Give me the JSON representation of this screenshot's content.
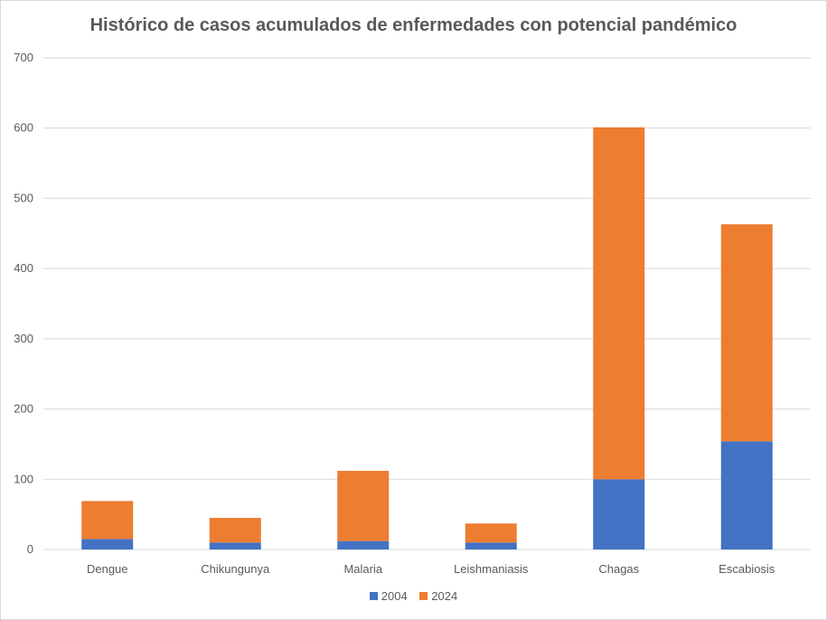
{
  "chart_data": {
    "type": "bar",
    "stacked": true,
    "title": "Histórico de casos acumulados de enfermedades con potencial pandémico",
    "xlabel": "",
    "ylabel": "",
    "ylim": [
      0,
      700
    ],
    "yticks": [
      "0",
      "100",
      "200",
      "300",
      "400",
      "500",
      "600",
      "700"
    ],
    "grid": true,
    "legend_position": "bottom",
    "categories": [
      "Dengue",
      "Chikungunya",
      "Malaria",
      "Leishmaniasis",
      "Chagas",
      "Escabiosis"
    ],
    "series": [
      {
        "name": "2004",
        "color": "#4472c4",
        "values": [
          15,
          10,
          12,
          10,
          100,
          154
        ]
      },
      {
        "name": "2024",
        "color": "#ed7d31",
        "values": [
          54,
          35,
          100,
          27,
          501,
          309
        ]
      }
    ]
  }
}
